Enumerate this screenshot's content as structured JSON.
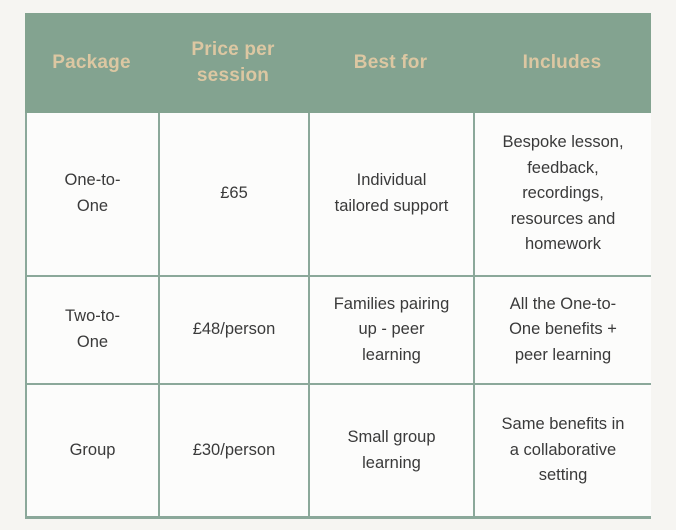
{
  "table": {
    "columns": [
      {
        "label": "Package"
      },
      {
        "label": "Price per session"
      },
      {
        "label": "Best for"
      },
      {
        "label": "Includes"
      }
    ],
    "rows": [
      {
        "package": "One-to-One",
        "price": "£65",
        "best_for": "Individual tailored support",
        "includes": "Bespoke lesson, feedback, recordings, resources and homework"
      },
      {
        "package": "Two-to-One",
        "price": "£48/person",
        "best_for": "Families pairing up - peer learning",
        "includes": "All the One-to-One benefits + peer learning"
      },
      {
        "package": "Group",
        "price": "£30/person",
        "best_for": "Small group learning",
        "includes": "Same benefits in a collaborative setting"
      }
    ],
    "colors": {
      "header_bg": "#83a390",
      "header_text": "#dcc7a2",
      "border": "#8ba89a",
      "cell_bg": "#fcfcfb",
      "page_bg": "#f6f5f2",
      "body_text": "#3a3a3a"
    }
  }
}
